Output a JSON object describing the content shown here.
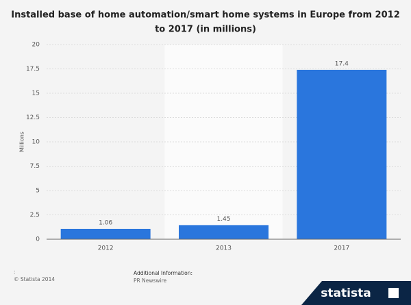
{
  "chart_data": {
    "type": "bar",
    "title": [
      "Installed base of home automation/smart home systems in Europe from 2012",
      "to 2017 (in millions)"
    ],
    "y_label": "Millions",
    "categories": [
      "2012",
      "2013",
      "2017"
    ],
    "values": [
      1.06,
      1.45,
      17.4
    ],
    "color": "#2a76dd",
    "ylim": [
      0,
      20
    ],
    "yticks": [
      0,
      2.5,
      5,
      7.5,
      10,
      12.5,
      15,
      17.5,
      20
    ],
    "grid": true
  },
  "footer": {
    "colon": ":",
    "copyright": "© Statista 2014",
    "info_title": "Additional Information:",
    "info_source": "PR Newswire"
  },
  "logo": "statista"
}
